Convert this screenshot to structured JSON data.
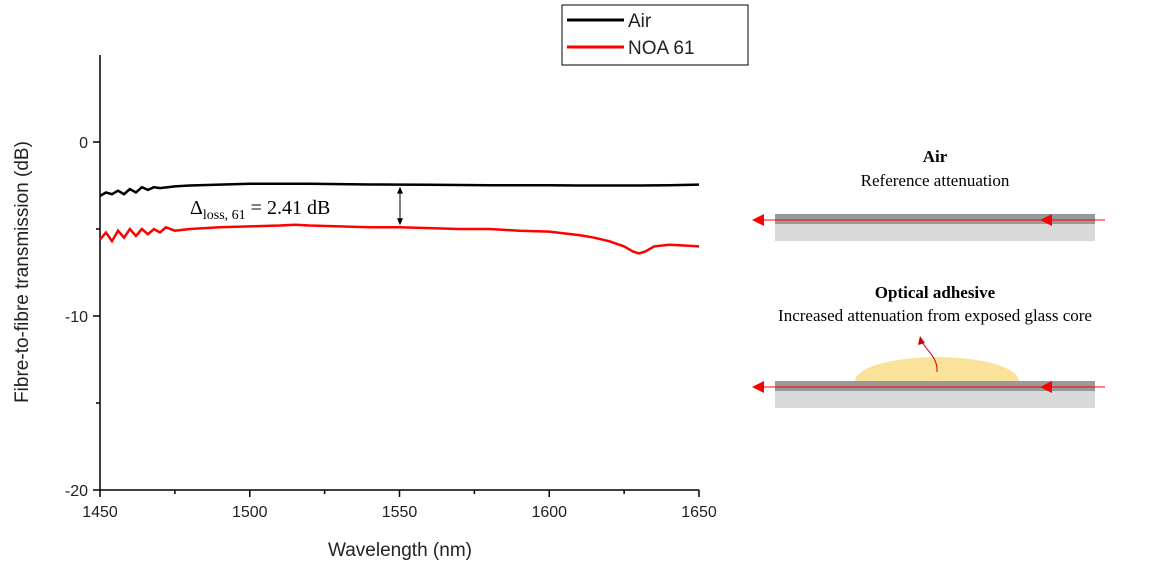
{
  "chart_data": {
    "type": "line",
    "xlabel": "Wavelength (nm)",
    "ylabel": "Fibre-to-fibre transmission (dB)",
    "xlim": [
      1450,
      1650
    ],
    "xticks": [
      1450,
      1500,
      1550,
      1600,
      1650
    ],
    "xminor_ticks": [
      1475,
      1525,
      1575,
      1625
    ],
    "ylim": [
      -20,
      5
    ],
    "yticks": [
      -20,
      -10,
      0
    ],
    "yminor_ticks": [
      -15,
      -5
    ],
    "legend": "top",
    "series": [
      {
        "name": "Air",
        "color": "#000000",
        "x": [
          1450,
          1452,
          1454,
          1456,
          1458,
          1460,
          1462,
          1464,
          1466,
          1468,
          1470,
          1475,
          1480,
          1490,
          1500,
          1510,
          1520,
          1530,
          1540,
          1550,
          1560,
          1570,
          1580,
          1590,
          1600,
          1610,
          1620,
          1630,
          1640,
          1650
        ],
        "values": [
          -3.1,
          -2.9,
          -3.0,
          -2.8,
          -3.0,
          -2.7,
          -2.9,
          -2.6,
          -2.75,
          -2.6,
          -2.65,
          -2.55,
          -2.5,
          -2.45,
          -2.4,
          -2.4,
          -2.4,
          -2.42,
          -2.44,
          -2.45,
          -2.46,
          -2.47,
          -2.48,
          -2.48,
          -2.49,
          -2.5,
          -2.5,
          -2.5,
          -2.48,
          -2.45
        ]
      },
      {
        "name": "NOA 61",
        "color": "#ff0000",
        "x": [
          1450,
          1452,
          1454,
          1456,
          1458,
          1460,
          1462,
          1464,
          1466,
          1468,
          1470,
          1472,
          1475,
          1480,
          1490,
          1500,
          1510,
          1515,
          1520,
          1530,
          1540,
          1550,
          1560,
          1570,
          1580,
          1590,
          1600,
          1605,
          1610,
          1615,
          1620,
          1625,
          1628,
          1630,
          1632,
          1635,
          1640,
          1645,
          1650
        ],
        "values": [
          -5.6,
          -5.2,
          -5.7,
          -5.1,
          -5.5,
          -5.0,
          -5.4,
          -5.0,
          -5.3,
          -5.0,
          -5.2,
          -4.9,
          -5.1,
          -5.0,
          -4.9,
          -4.85,
          -4.8,
          -4.75,
          -4.8,
          -4.85,
          -4.9,
          -4.9,
          -4.95,
          -5.0,
          -5.0,
          -5.1,
          -5.15,
          -5.25,
          -5.35,
          -5.5,
          -5.7,
          -6.0,
          -6.3,
          -6.4,
          -6.3,
          -6.0,
          -5.9,
          -5.95,
          -6.0
        ]
      }
    ],
    "annotation": {
      "symbol": "Δ",
      "subscript": "loss, 61",
      "text": " = 2.41 dB"
    }
  },
  "diagram": {
    "air": {
      "title": "Air",
      "caption": "Reference attenuation"
    },
    "adhesive": {
      "title": "Optical adhesive",
      "caption": "Increased attenuation from exposed glass core"
    }
  }
}
